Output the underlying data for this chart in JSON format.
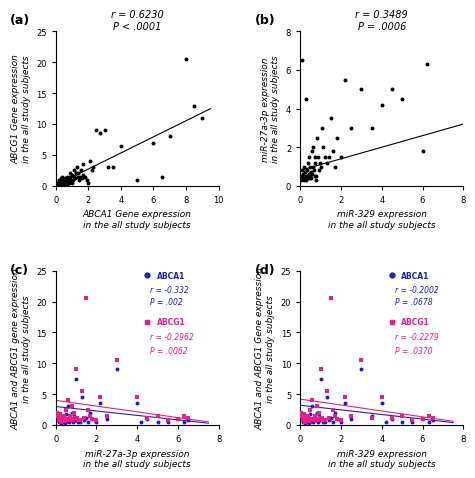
{
  "panel_a": {
    "title": "r = 0.6230\nP < .0001",
    "xlabel": "ABCA1 Gene expression\nin the all study subjects",
    "ylabel": "ABCG1 Gene expression\nin the all study subjects",
    "xlim": [
      0,
      10
    ],
    "ylim": [
      0,
      25
    ],
    "xticks": [
      0,
      2,
      4,
      6,
      8,
      10
    ],
    "yticks": [
      0,
      5,
      10,
      15,
      20,
      25
    ],
    "scatter_x": [
      0.1,
      0.12,
      0.15,
      0.18,
      0.2,
      0.22,
      0.25,
      0.28,
      0.3,
      0.32,
      0.35,
      0.38,
      0.4,
      0.42,
      0.45,
      0.48,
      0.5,
      0.52,
      0.55,
      0.58,
      0.6,
      0.62,
      0.65,
      0.68,
      0.7,
      0.72,
      0.75,
      0.78,
      0.8,
      0.82,
      0.85,
      0.88,
      0.9,
      0.92,
      0.95,
      0.98,
      1.0,
      1.05,
      1.1,
      1.15,
      1.2,
      1.25,
      1.3,
      1.35,
      1.4,
      1.45,
      1.5,
      1.55,
      1.6,
      1.65,
      1.7,
      1.8,
      1.9,
      2.0,
      2.1,
      2.2,
      2.3,
      2.5,
      2.7,
      3.0,
      3.2,
      3.5,
      4.0,
      5.0,
      6.0,
      6.5,
      7.0,
      8.0,
      8.5,
      9.0
    ],
    "scatter_y": [
      0.1,
      0.3,
      0.5,
      0.8,
      1.0,
      0.2,
      0.4,
      0.6,
      1.2,
      0.3,
      0.8,
      0.5,
      1.5,
      0.4,
      0.7,
      1.0,
      0.3,
      0.5,
      0.8,
      1.2,
      0.4,
      0.6,
      1.0,
      0.3,
      0.7,
      1.5,
      0.5,
      0.8,
      1.2,
      0.4,
      2.0,
      0.6,
      1.5,
      0.8,
      1.0,
      0.5,
      1.8,
      1.0,
      2.5,
      1.5,
      1.2,
      2.0,
      3.0,
      1.5,
      2.0,
      1.0,
      1.5,
      2.5,
      1.2,
      3.5,
      1.8,
      1.5,
      1.0,
      0.5,
      4.0,
      2.5,
      3.0,
      9.0,
      8.5,
      9.0,
      3.0,
      3.0,
      6.5,
      1.0,
      7.0,
      1.5,
      8.0,
      20.5,
      13.0,
      11.0
    ],
    "trendline_x": [
      0,
      9.5
    ],
    "trendline_y": [
      0.1,
      12.5
    ]
  },
  "panel_b": {
    "title": "r = 0.3489\nP = .0006",
    "xlabel": "miR-329 expression\nin the all study subjects",
    "ylabel": "miR-27a-3p expression\nin the all study subjects",
    "xlim": [
      0,
      8
    ],
    "ylim": [
      0,
      8
    ],
    "xticks": [
      0,
      2,
      4,
      6,
      8
    ],
    "yticks": [
      0,
      2,
      4,
      6,
      8
    ],
    "scatter_x": [
      0.05,
      0.08,
      0.1,
      0.12,
      0.15,
      0.18,
      0.2,
      0.22,
      0.25,
      0.28,
      0.3,
      0.32,
      0.35,
      0.38,
      0.4,
      0.42,
      0.45,
      0.48,
      0.5,
      0.52,
      0.55,
      0.58,
      0.6,
      0.62,
      0.65,
      0.68,
      0.7,
      0.72,
      0.75,
      0.78,
      0.8,
      0.85,
      0.9,
      0.95,
      1.0,
      1.05,
      1.1,
      1.2,
      1.3,
      1.4,
      1.5,
      1.6,
      1.7,
      1.8,
      2.0,
      2.2,
      2.5,
      3.0,
      3.5,
      4.0,
      4.5,
      5.0,
      6.0,
      6.2,
      0.1,
      0.3,
      0.5,
      0.7
    ],
    "scatter_y": [
      0.3,
      0.5,
      0.8,
      0.4,
      0.6,
      0.3,
      1.0,
      0.4,
      0.7,
      0.5,
      0.3,
      0.8,
      0.5,
      1.2,
      0.4,
      0.6,
      1.5,
      0.5,
      1.0,
      0.7,
      0.4,
      1.8,
      0.6,
      1.0,
      2.0,
      0.8,
      1.5,
      1.2,
      0.5,
      0.3,
      2.5,
      1.5,
      0.8,
      1.2,
      1.0,
      3.0,
      2.0,
      1.5,
      1.2,
      1.5,
      3.5,
      1.8,
      1.0,
      2.5,
      1.5,
      5.5,
      3.0,
      5.0,
      3.0,
      4.2,
      5.0,
      4.5,
      1.8,
      6.3,
      6.5,
      4.5,
      0.4,
      0.5
    ],
    "trendline_x": [
      0,
      8
    ],
    "trendline_y": [
      0.8,
      3.2
    ]
  },
  "panel_c": {
    "xlabel": "miR-27a-3p expression\nin the all study subjects",
    "ylabel": "ABCA1 and ABCG1 gene expression\nin the all study subjects",
    "xlim": [
      0,
      8
    ],
    "ylim": [
      0,
      25
    ],
    "xticks": [
      0,
      2,
      4,
      6,
      8
    ],
    "yticks": [
      0,
      5,
      10,
      15,
      20,
      25
    ],
    "abca1_x": [
      0.05,
      0.1,
      0.15,
      0.2,
      0.25,
      0.3,
      0.35,
      0.4,
      0.45,
      0.5,
      0.55,
      0.6,
      0.65,
      0.7,
      0.75,
      0.8,
      0.85,
      0.9,
      0.95,
      1.0,
      1.05,
      1.1,
      1.15,
      1.2,
      1.3,
      1.4,
      1.5,
      1.6,
      1.7,
      1.8,
      2.0,
      2.2,
      2.5,
      3.0,
      4.0,
      4.2,
      4.5,
      5.0,
      5.5,
      6.0,
      6.3,
      6.5
    ],
    "abca1_y": [
      1.5,
      0.8,
      0.5,
      1.2,
      0.3,
      0.8,
      0.5,
      1.0,
      0.4,
      1.8,
      0.7,
      3.0,
      0.5,
      1.0,
      0.8,
      2.0,
      0.5,
      1.5,
      0.8,
      7.5,
      0.8,
      0.5,
      0.8,
      0.5,
      4.5,
      0.8,
      1.2,
      0.5,
      2.0,
      1.0,
      0.5,
      3.5,
      1.0,
      9.0,
      3.5,
      0.5,
      1.0,
      0.5,
      0.5,
      1.0,
      0.5,
      0.8
    ],
    "abcg1_x": [
      0.05,
      0.1,
      0.15,
      0.2,
      0.25,
      0.3,
      0.35,
      0.4,
      0.45,
      0.5,
      0.55,
      0.6,
      0.65,
      0.7,
      0.75,
      0.8,
      0.85,
      0.9,
      0.95,
      1.0,
      1.05,
      1.1,
      1.2,
      1.3,
      1.4,
      1.5,
      1.6,
      1.7,
      1.8,
      2.0,
      2.2,
      2.5,
      3.0,
      4.0,
      4.5,
      5.0,
      5.5,
      6.0,
      6.3,
      6.5
    ],
    "abcg1_y": [
      2.0,
      1.5,
      0.8,
      1.8,
      0.5,
      1.2,
      0.8,
      1.5,
      0.6,
      2.5,
      1.0,
      4.0,
      0.8,
      1.5,
      1.0,
      3.0,
      0.8,
      2.0,
      1.2,
      9.0,
      1.2,
      0.8,
      0.8,
      5.5,
      1.2,
      20.5,
      2.5,
      1.5,
      1.0,
      0.8,
      4.5,
      1.5,
      10.5,
      4.5,
      1.2,
      1.5,
      0.8,
      1.0,
      1.5,
      1.2
    ],
    "abca1_trend_x": [
      0,
      7.5
    ],
    "abca1_trend_y": [
      3.0,
      0.3
    ],
    "abcg1_trend_x": [
      0,
      7.5
    ],
    "abcg1_trend_y": [
      4.0,
      0.5
    ],
    "legend_abca1_label": "ABCA1",
    "legend_abca1_r": "r = -0.332",
    "legend_abca1_p": "P = .002",
    "legend_abcg1_label": "ABCG1",
    "legend_abcg1_r": "r = -0.2962",
    "legend_abcg1_p": "P = .0062",
    "abca1_color": "#1F1FBF",
    "abcg1_color": "#E91E8C"
  },
  "panel_d": {
    "xlabel": "miR-329 expression\nin the all study subjects",
    "ylabel": "ABCA1 and ABCG1 Gene expression\nin the all study subjects",
    "xlim": [
      0,
      8
    ],
    "ylim": [
      0,
      25
    ],
    "xticks": [
      0,
      2,
      4,
      6,
      8
    ],
    "yticks": [
      0,
      5,
      10,
      15,
      20,
      25
    ],
    "abca1_x": [
      0.05,
      0.1,
      0.15,
      0.2,
      0.25,
      0.3,
      0.35,
      0.4,
      0.45,
      0.5,
      0.55,
      0.6,
      0.65,
      0.7,
      0.75,
      0.8,
      0.85,
      0.9,
      0.95,
      1.0,
      1.05,
      1.1,
      1.15,
      1.2,
      1.3,
      1.4,
      1.5,
      1.6,
      1.7,
      1.8,
      2.0,
      2.2,
      2.5,
      3.0,
      3.5,
      4.0,
      4.2,
      4.5,
      5.0,
      5.5,
      6.0,
      6.3,
      6.5
    ],
    "abca1_y": [
      1.5,
      0.8,
      0.5,
      1.2,
      0.3,
      0.8,
      0.5,
      1.0,
      0.4,
      1.8,
      0.7,
      3.0,
      0.5,
      1.0,
      0.8,
      2.0,
      0.5,
      1.5,
      0.8,
      7.5,
      0.8,
      0.5,
      0.8,
      0.5,
      4.5,
      0.8,
      1.2,
      0.5,
      2.0,
      1.0,
      0.5,
      3.5,
      1.0,
      9.0,
      1.5,
      3.5,
      0.5,
      1.0,
      0.5,
      0.5,
      1.0,
      0.5,
      0.8
    ],
    "abcg1_x": [
      0.05,
      0.1,
      0.15,
      0.2,
      0.25,
      0.3,
      0.35,
      0.4,
      0.45,
      0.5,
      0.55,
      0.6,
      0.65,
      0.7,
      0.75,
      0.8,
      0.85,
      0.9,
      0.95,
      1.0,
      1.05,
      1.1,
      1.2,
      1.3,
      1.4,
      1.5,
      1.6,
      1.7,
      1.8,
      2.0,
      2.2,
      2.5,
      3.0,
      3.5,
      4.0,
      4.5,
      5.0,
      5.5,
      6.0,
      6.3,
      6.5
    ],
    "abcg1_y": [
      2.0,
      1.5,
      0.8,
      1.8,
      0.5,
      1.2,
      0.8,
      1.5,
      0.6,
      2.5,
      1.0,
      4.0,
      0.8,
      1.5,
      1.0,
      3.0,
      0.8,
      2.0,
      1.2,
      9.0,
      1.2,
      0.8,
      0.8,
      5.5,
      1.2,
      20.5,
      2.5,
      1.5,
      1.0,
      0.8,
      4.5,
      1.5,
      10.5,
      1.2,
      4.5,
      1.2,
      1.5,
      0.8,
      1.0,
      1.5,
      1.2
    ],
    "abca1_trend_x": [
      0,
      7.5
    ],
    "abca1_trend_y": [
      3.2,
      0.4
    ],
    "abcg1_trend_x": [
      0,
      7.5
    ],
    "abcg1_trend_y": [
      4.2,
      0.6
    ],
    "legend_abca1_label": "ABCA1",
    "legend_abca1_r": "r = -0.2002",
    "legend_abca1_p": "P = .0678",
    "legend_abcg1_label": "ABCG1",
    "legend_abcg1_r": "r = -0.2279",
    "legend_abcg1_p": "P = .0370",
    "abca1_color": "#1F1FBF",
    "abcg1_color": "#E91E8C"
  },
  "label_fontsize": 6.5,
  "tick_fontsize": 6,
  "title_fontsize": 7,
  "scatter_size": 8,
  "panel_label_fontsize": 9
}
